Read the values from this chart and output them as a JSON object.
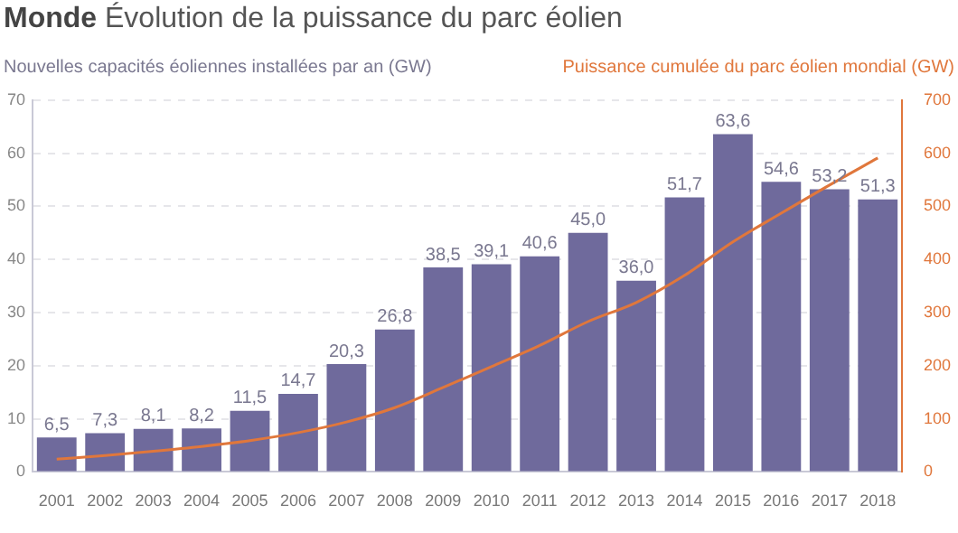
{
  "chart_data": {
    "type": "bar",
    "title": "Monde",
    "subtitle": "Évolution de la puissance du parc éolien",
    "ylabel": "Nouvelles capacités éoliennes installées par an (GW)",
    "y2label": "Puissance cumulée du parc éolien mondial (GW)",
    "categories": [
      "2001",
      "2002",
      "2003",
      "2004",
      "2005",
      "2006",
      "2007",
      "2008",
      "2009",
      "2010",
      "2011",
      "2012",
      "2013",
      "2014",
      "2015",
      "2016",
      "2017",
      "2018"
    ],
    "series": [
      {
        "color": "#6f6a9c",
        "values": [
          6.5,
          7.3,
          8.1,
          8.2,
          11.5,
          14.7,
          20.3,
          26.8,
          38.5,
          39.1,
          40.6,
          45.0,
          36.0,
          51.7,
          63.6,
          54.6,
          53.2,
          51.3
        ],
        "value_labels": [
          "6,5",
          "7,3",
          "8,1",
          "8,2",
          "11,5",
          "14,7",
          "20,3",
          "26,8",
          "38,5",
          "39,1",
          "40,6",
          "45,0",
          "36,0",
          "51,7",
          "63,6",
          "54,6",
          "53,2",
          "51,3"
        ]
      },
      {
        "type": "line",
        "axis": "y2",
        "color": "#e0773c",
        "values": [
          24,
          31,
          39,
          48,
          59,
          74,
          94,
          121,
          159,
          198,
          238,
          283,
          319,
          370,
          433,
          487,
          540,
          591
        ]
      }
    ],
    "ylim": [
      0,
      70
    ],
    "yticks": [
      0,
      10,
      20,
      30,
      40,
      50,
      60,
      70
    ],
    "y2lim": [
      0,
      700
    ],
    "y2ticks": [
      0,
      100,
      200,
      300,
      400,
      500,
      600,
      700
    ],
    "grid": "y",
    "legend": false,
    "marker": "none",
    "line_style": "solid"
  }
}
